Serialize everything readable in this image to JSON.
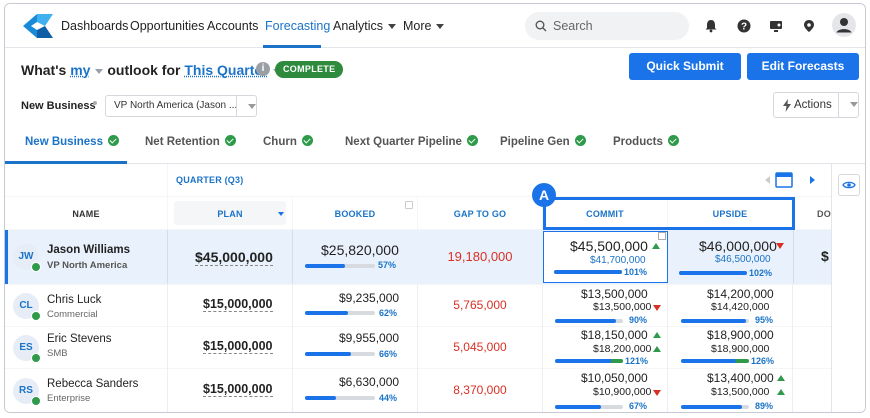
{
  "nav": {
    "items": [
      "Dashboards",
      "Opportunities",
      "Accounts",
      "Forecasting",
      "Analytics",
      "More"
    ],
    "search_placeholder": "Search"
  },
  "header": {
    "whats": "What's",
    "my": "my",
    "outlook_for": "outlook for",
    "period": "This Quarter",
    "qmark": "?",
    "status_badge": "COMPLETE",
    "quick_submit": "Quick Submit",
    "edit_forecasts": "Edit Forecasts"
  },
  "filters": {
    "segment": "New Business",
    "owner": "VP North America (Jason ...",
    "actions": "Actions"
  },
  "tabs": [
    "New Business",
    "Net Retention",
    "Churn",
    "Next Quarter Pipeline",
    "Pipeline Gen",
    "Products"
  ],
  "table": {
    "quarter_label": "QUARTER (Q3)",
    "columns": {
      "name": "NAME",
      "plan": "PLAN",
      "booked": "BOOKED",
      "gap": "GAP TO GO",
      "commit": "COMMIT",
      "upside": "UPSIDE",
      "extra": "DO"
    },
    "callout": "A",
    "total": {
      "initials": "JW",
      "name": "Jason Williams",
      "sub": "VP North America",
      "plan": "$45,000,000",
      "booked": "$25,820,000",
      "booked_pct": "57%",
      "gap": "19,180,000",
      "commit": "$45,500,000",
      "commit_sub": "$41,700,000",
      "commit_pct": "101%",
      "upside": "$46,000,000",
      "upside_sub": "$46,500,000",
      "upside_pct": "102%",
      "extra": "$"
    },
    "rows": [
      {
        "initials": "CL",
        "name": "Chris Luck",
        "sub": "Commercial",
        "plan": "$15,000,000",
        "booked": "$9,235,000",
        "booked_pct": "62%",
        "gap": "5,765,000",
        "commit": "$13,500,000",
        "commit_sub": "$13,500,000",
        "commit_pct": "90%",
        "upside": "$14,200,000",
        "upside_sub": "$14,420,000",
        "upside_pct": "95%"
      },
      {
        "initials": "ES",
        "name": "Eric Stevens",
        "sub": "SMB",
        "plan": "$15,000,000",
        "booked": "$9,955,000",
        "booked_pct": "66%",
        "gap": "5,045,000",
        "commit": "$18,150,000",
        "commit_sub": "$18,200,000",
        "commit_pct": "121%",
        "upside": "$18,900,000",
        "upside_sub": "$18,900,000",
        "upside_pct": "126%"
      },
      {
        "initials": "RS",
        "name": "Rebecca Sanders",
        "sub": "Enterprise",
        "plan": "$15,000,000",
        "booked": "$6,630,000",
        "booked_pct": "44%",
        "gap": "8,370,000",
        "commit": "$10,050,000",
        "commit_sub": "$10,900,000",
        "commit_pct": "67%",
        "upside": "$13,400,000",
        "upside_sub": "$13,500,000",
        "upside_pct": "89%"
      }
    ]
  },
  "colors": {
    "accent": "#1a73e8",
    "success": "#2e9a4a",
    "danger": "#d93025"
  }
}
